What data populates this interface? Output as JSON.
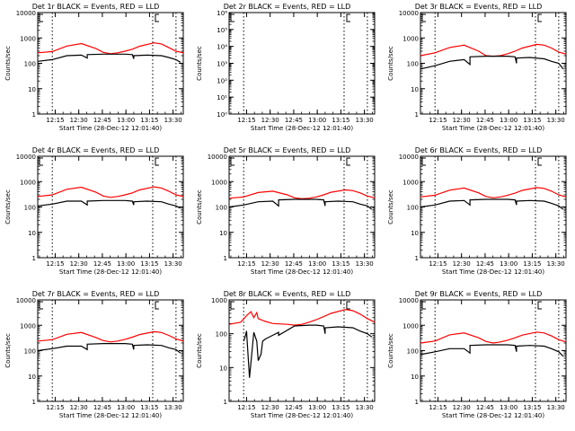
{
  "chart_data": [
    {
      "type": "line",
      "title": "Det 1r BLACK = Events, RED = LLD",
      "xlabel": "Start Time (28-Dec-12 12:01:40)",
      "ylabel": "Counts/sec",
      "yscale": "log",
      "ylim": [
        1,
        10000
      ],
      "xlim": [
        0,
        100
      ],
      "yticks": [
        "1",
        "10",
        "100",
        "1000",
        "10000"
      ],
      "xticks": [
        "12:15",
        "12:30",
        "12:45",
        "13:00",
        "13:15",
        "13:30"
      ],
      "series": [
        {
          "color": "#ff0000",
          "x": [
            0,
            10,
            20,
            30,
            40,
            45,
            50,
            55,
            60,
            65,
            70,
            80,
            85,
            90,
            95,
            100
          ],
          "values": [
            260,
            290,
            480,
            600,
            380,
            270,
            240,
            260,
            300,
            360,
            470,
            640,
            580,
            420,
            300,
            260
          ]
        },
        {
          "color": "#000000",
          "x": [
            0,
            10,
            20,
            30,
            34,
            34,
            45,
            55,
            60,
            65,
            66,
            66,
            75,
            85,
            90,
            95,
            98
          ],
          "values": [
            120,
            140,
            200,
            210,
            160,
            220,
            230,
            230,
            230,
            220,
            150,
            200,
            210,
            200,
            170,
            140,
            110
          ]
        }
      ],
      "vlines": [
        10,
        79,
        95
      ]
    },
    {
      "type": "line",
      "title": "Det 2r BLACK = Events, RED = LLD",
      "xlabel": "Start Time (28-Dec-12 12:01:40)",
      "ylabel": "Counts/sec",
      "yscale": "log",
      "ylim": [
        1,
        1000000
      ],
      "xlim": [
        0,
        100
      ],
      "yticks": [
        "10⁰",
        "10¹",
        "10²",
        "10³",
        "10⁴",
        "10⁵",
        "10⁶"
      ],
      "xticks": [
        "12:15",
        "12:30",
        "12:45",
        "13:00",
        "13:15",
        "13:30"
      ],
      "series": [],
      "vlines": [
        10,
        79,
        95
      ]
    },
    {
      "type": "line",
      "title": "Det 3r BLACK = Events, RED = LLD",
      "xlabel": "Start Time (28-Dec-12 12:01:40)",
      "ylabel": "Counts/sec",
      "yscale": "log",
      "ylim": [
        1,
        10000
      ],
      "xlim": [
        0,
        100
      ],
      "yticks": [
        "1",
        "10",
        "100",
        "1000",
        "10000"
      ],
      "xticks": [
        "12:15",
        "12:30",
        "12:45",
        "13:00",
        "13:15",
        "13:30"
      ],
      "series": [
        {
          "color": "#ff0000",
          "x": [
            0,
            10,
            20,
            30,
            40,
            45,
            50,
            55,
            60,
            65,
            70,
            80,
            85,
            90,
            95,
            100
          ],
          "values": [
            200,
            260,
            420,
            520,
            300,
            200,
            190,
            200,
            240,
            300,
            400,
            560,
            520,
            400,
            280,
            230
          ]
        },
        {
          "color": "#000000",
          "x": [
            0,
            10,
            20,
            30,
            34,
            34,
            45,
            55,
            60,
            65,
            66,
            66,
            75,
            85,
            90,
            95,
            98
          ],
          "values": [
            60,
            80,
            120,
            140,
            90,
            180,
            190,
            190,
            190,
            180,
            100,
            160,
            170,
            150,
            120,
            100,
            60
          ]
        }
      ],
      "vlines": [
        10,
        79,
        95
      ]
    },
    {
      "type": "line",
      "title": "Det 4r BLACK = Events, RED = LLD",
      "xlabel": "Start Time (28-Dec-12 12:01:40)",
      "ylabel": "Counts/sec",
      "yscale": "log",
      "ylim": [
        1,
        10000
      ],
      "xlim": [
        0,
        100
      ],
      "yticks": [
        "1",
        "10",
        "100",
        "1000",
        "10000"
      ],
      "xticks": [
        "12:15",
        "12:30",
        "12:45",
        "13:00",
        "13:15",
        "13:30"
      ],
      "series": [
        {
          "color": "#ff0000",
          "x": [
            0,
            10,
            20,
            30,
            40,
            45,
            50,
            55,
            60,
            65,
            70,
            80,
            85,
            90,
            95,
            100
          ],
          "values": [
            260,
            300,
            500,
            600,
            380,
            270,
            240,
            260,
            300,
            360,
            470,
            620,
            560,
            420,
            300,
            260
          ]
        },
        {
          "color": "#000000",
          "x": [
            0,
            10,
            20,
            30,
            34,
            34,
            45,
            55,
            60,
            65,
            66,
            66,
            75,
            85,
            90,
            95,
            98
          ],
          "values": [
            110,
            130,
            170,
            170,
            120,
            170,
            180,
            180,
            180,
            170,
            120,
            160,
            170,
            160,
            130,
            110,
            90
          ]
        }
      ],
      "vlines": [
        10,
        79,
        95
      ]
    },
    {
      "type": "line",
      "title": "Det 5r BLACK = Events, RED = LLD",
      "xlabel": "Start Time (28-Dec-12 12:01:40)",
      "ylabel": "Counts/sec",
      "yscale": "log",
      "ylim": [
        1,
        10000
      ],
      "xlim": [
        0,
        100
      ],
      "yticks": [
        "1",
        "10",
        "100",
        "1000",
        "10000"
      ],
      "xticks": [
        "12:15",
        "12:30",
        "12:45",
        "13:00",
        "13:15",
        "13:30"
      ],
      "series": [
        {
          "color": "#ff0000",
          "x": [
            0,
            10,
            20,
            30,
            40,
            45,
            50,
            55,
            60,
            65,
            70,
            80,
            85,
            90,
            95,
            100
          ],
          "values": [
            220,
            250,
            370,
            420,
            300,
            230,
            210,
            220,
            250,
            300,
            380,
            470,
            440,
            360,
            270,
            230
          ]
        },
        {
          "color": "#000000",
          "x": [
            0,
            10,
            20,
            30,
            34,
            34,
            45,
            55,
            60,
            65,
            66,
            66,
            75,
            85,
            90,
            95,
            98
          ],
          "values": [
            100,
            120,
            160,
            170,
            110,
            190,
            200,
            200,
            200,
            190,
            110,
            160,
            170,
            160,
            130,
            110,
            80
          ]
        }
      ],
      "vlines": [
        10,
        79,
        95
      ]
    },
    {
      "type": "line",
      "title": "Det 6r BLACK = Events, RED = LLD",
      "xlabel": "Start Time (28-Dec-12 12:01:40)",
      "ylabel": "Counts/sec",
      "yscale": "log",
      "ylim": [
        1,
        10000
      ],
      "xlim": [
        0,
        100
      ],
      "yticks": [
        "1",
        "10",
        "100",
        "1000",
        "10000"
      ],
      "xticks": [
        "12:15",
        "12:30",
        "12:45",
        "13:00",
        "13:15",
        "13:30"
      ],
      "series": [
        {
          "color": "#ff0000",
          "x": [
            0,
            10,
            20,
            30,
            40,
            45,
            50,
            55,
            60,
            65,
            70,
            80,
            85,
            90,
            95,
            100
          ],
          "values": [
            250,
            290,
            460,
            560,
            360,
            260,
            230,
            250,
            290,
            350,
            450,
            580,
            540,
            420,
            300,
            250
          ]
        },
        {
          "color": "#000000",
          "x": [
            0,
            10,
            20,
            30,
            34,
            34,
            45,
            55,
            60,
            65,
            66,
            66,
            75,
            85,
            90,
            95,
            98
          ],
          "values": [
            100,
            120,
            170,
            180,
            120,
            190,
            200,
            200,
            200,
            190,
            120,
            170,
            180,
            170,
            140,
            110,
            80
          ]
        }
      ],
      "vlines": [
        10,
        79,
        95
      ]
    },
    {
      "type": "line",
      "title": "Det 7r BLACK = Events, RED = LLD",
      "xlabel": "Start Time (28-Dec-12 12:01:40)",
      "ylabel": "Counts/sec",
      "yscale": "log",
      "ylim": [
        1,
        10000
      ],
      "xlim": [
        0,
        100
      ],
      "yticks": [
        "1",
        "10",
        "100",
        "1000",
        "10000"
      ],
      "xticks": [
        "12:15",
        "12:30",
        "12:45",
        "13:00",
        "13:15",
        "13:30"
      ],
      "series": [
        {
          "color": "#ff0000",
          "x": [
            0,
            10,
            20,
            30,
            40,
            45,
            50,
            55,
            60,
            65,
            70,
            80,
            85,
            90,
            95,
            100
          ],
          "values": [
            240,
            270,
            440,
            520,
            330,
            250,
            220,
            240,
            280,
            340,
            430,
            560,
            520,
            400,
            290,
            240
          ]
        },
        {
          "color": "#000000",
          "x": [
            0,
            10,
            20,
            30,
            34,
            34,
            45,
            55,
            60,
            65,
            66,
            66,
            75,
            85,
            90,
            95,
            98
          ],
          "values": [
            100,
            120,
            150,
            150,
            110,
            180,
            190,
            190,
            190,
            180,
            110,
            160,
            170,
            160,
            130,
            110,
            80
          ]
        }
      ],
      "vlines": [
        10,
        79,
        95
      ]
    },
    {
      "type": "line",
      "title": "Det 8r BLACK = Events, RED = LLD",
      "xlabel": "Start Time (28-Dec-12 12:01:40)",
      "ylabel": "Counts/sec",
      "yscale": "log",
      "ylim": [
        1,
        1000
      ],
      "xlim": [
        0,
        100
      ],
      "yticks": [
        "1",
        "10",
        "100",
        "1000"
      ],
      "xticks": [
        "12:15",
        "12:30",
        "12:45",
        "13:00",
        "13:15",
        "13:30"
      ],
      "series": [
        {
          "color": "#ff0000",
          "x": [
            0,
            8,
            12,
            15,
            17,
            19,
            20,
            25,
            30,
            40,
            45,
            50,
            55,
            60,
            65,
            70,
            80,
            85,
            90,
            95,
            100
          ],
          "values": [
            190,
            220,
            340,
            450,
            300,
            420,
            280,
            230,
            200,
            190,
            180,
            190,
            220,
            260,
            320,
            400,
            520,
            480,
            380,
            280,
            220
          ]
        },
        {
          "color": "#000000",
          "x": [
            10,
            11,
            12,
            14,
            17,
            19,
            20,
            22,
            23,
            25,
            30,
            34,
            34,
            45,
            55,
            60,
            65,
            66,
            66,
            75,
            85,
            90,
            95,
            98
          ],
          "values": [
            60,
            80,
            120,
            5,
            110,
            60,
            16,
            25,
            60,
            70,
            90,
            110,
            90,
            170,
            180,
            180,
            170,
            100,
            150,
            160,
            150,
            120,
            100,
            80
          ]
        }
      ],
      "vlines": [
        10,
        79,
        95
      ]
    },
    {
      "type": "line",
      "title": "Det 9r BLACK = Events, RED = LLD",
      "xlabel": "Start Time (28-Dec-12 12:01:40)",
      "ylabel": "Counts/sec",
      "yscale": "log",
      "ylim": [
        1,
        10000
      ],
      "xlim": [
        0,
        100
      ],
      "yticks": [
        "1",
        "10",
        "100",
        "1000",
        "10000"
      ],
      "xticks": [
        "12:15",
        "12:30",
        "12:45",
        "13:00",
        "13:15",
        "13:30"
      ],
      "series": [
        {
          "color": "#ff0000",
          "x": [
            0,
            10,
            20,
            30,
            40,
            45,
            50,
            55,
            60,
            65,
            70,
            80,
            85,
            90,
            95,
            100
          ],
          "values": [
            200,
            240,
            420,
            500,
            320,
            230,
            200,
            220,
            260,
            320,
            410,
            540,
            500,
            380,
            270,
            220
          ]
        },
        {
          "color": "#000000",
          "x": [
            0,
            10,
            20,
            30,
            34,
            34,
            45,
            55,
            60,
            65,
            66,
            66,
            75,
            85,
            90,
            95,
            98
          ],
          "values": [
            70,
            90,
            120,
            120,
            80,
            160,
            170,
            170,
            170,
            160,
            90,
            150,
            160,
            150,
            120,
            90,
            60
          ]
        }
      ],
      "vlines": [
        10,
        79,
        95
      ]
    }
  ]
}
